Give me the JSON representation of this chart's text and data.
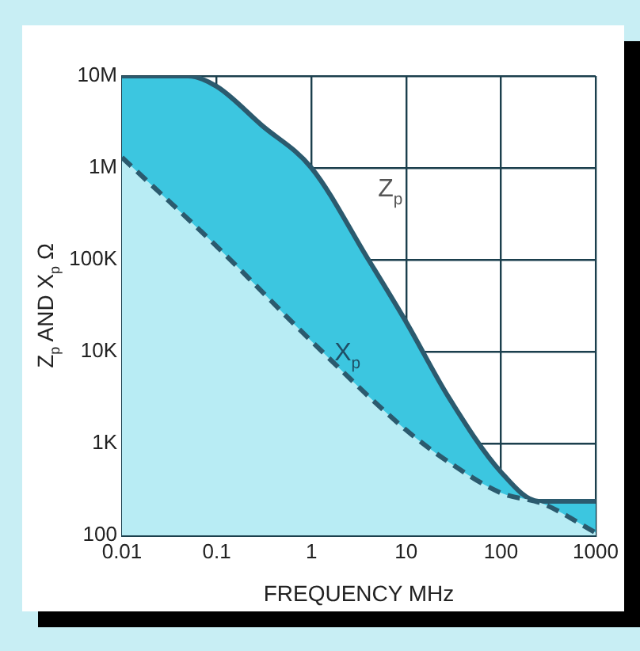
{
  "chart_data": {
    "type": "area",
    "xlabel": "FREQUENCY MHz",
    "ylabel": "Z$_{p}$ AND X$_{p}$ Ω",
    "log": "xy",
    "grid": true,
    "legend": false,
    "marker": "none",
    "xlim": [
      0.01,
      1000
    ],
    "xticks": [
      0.01,
      0.1,
      1,
      10,
      100,
      1000
    ],
    "ylim": [
      100,
      10000000
    ],
    "yticks": [
      100,
      {
        "value": 1000,
        "label": "1K"
      },
      {
        "value": 10000,
        "label": "10K"
      },
      {
        "value": 100000,
        "label": "100K"
      },
      {
        "value": 1000000,
        "label": "1M"
      },
      {
        "value": 10000000,
        "label": "10M"
      }
    ],
    "series": [
      {
        "name": "Z$_{p}$",
        "color": "#3cc6e0",
        "line_style": "solid",
        "x": [
          0.01,
          0.05,
          0.1,
          0.3,
          1,
          4,
          10,
          28,
          100,
          250,
          1000
        ],
        "values": [
          10000000,
          10000000,
          7700000,
          2900000,
          1000000,
          100000,
          21000,
          3200,
          490,
          235,
          235
        ]
      },
      {
        "name": "X$_{p}$",
        "color": "#b8ecf4",
        "line_style": "dashed",
        "x": [
          0.01,
          0.1,
          1,
          10,
          28,
          100,
          280,
          1000
        ],
        "values": [
          1300000,
          140000,
          13000,
          1400,
          630,
          290,
          220,
          107
        ]
      }
    ]
  }
}
